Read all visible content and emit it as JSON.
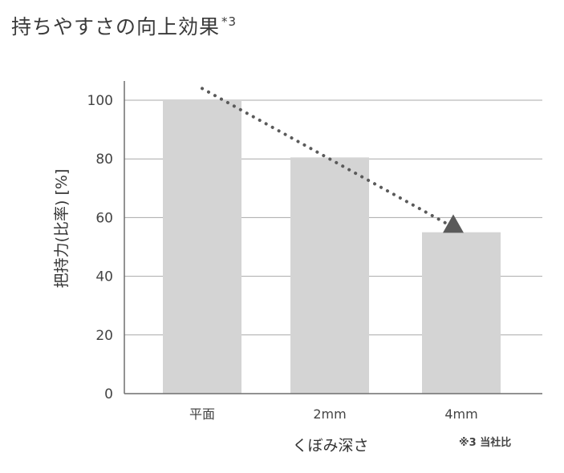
{
  "title": "持ちやすさの向上効果",
  "title_sup": "*3",
  "note": "※3 当社比",
  "colors": {
    "bar": "#d4d4d4",
    "grid": "#a8a8a8",
    "axis": "#6e6e6e",
    "trend": "#5a5a5a"
  },
  "chart_data": {
    "type": "bar",
    "categories": [
      "平面",
      "2mm",
      "4mm"
    ],
    "values": [
      100,
      80.5,
      55
    ],
    "xlabel": "くぼみ深さ",
    "ylabel": "把持力(比率) [%]",
    "ylim": [
      0,
      100
    ],
    "yticks": [
      0,
      20,
      40,
      60,
      80,
      100
    ],
    "grid": true,
    "annotations": [
      {
        "type": "dotted-arrow",
        "from": {
          "category": "平面",
          "value": 104
        },
        "to": {
          "category": "4mm",
          "value": 57
        }
      }
    ]
  }
}
